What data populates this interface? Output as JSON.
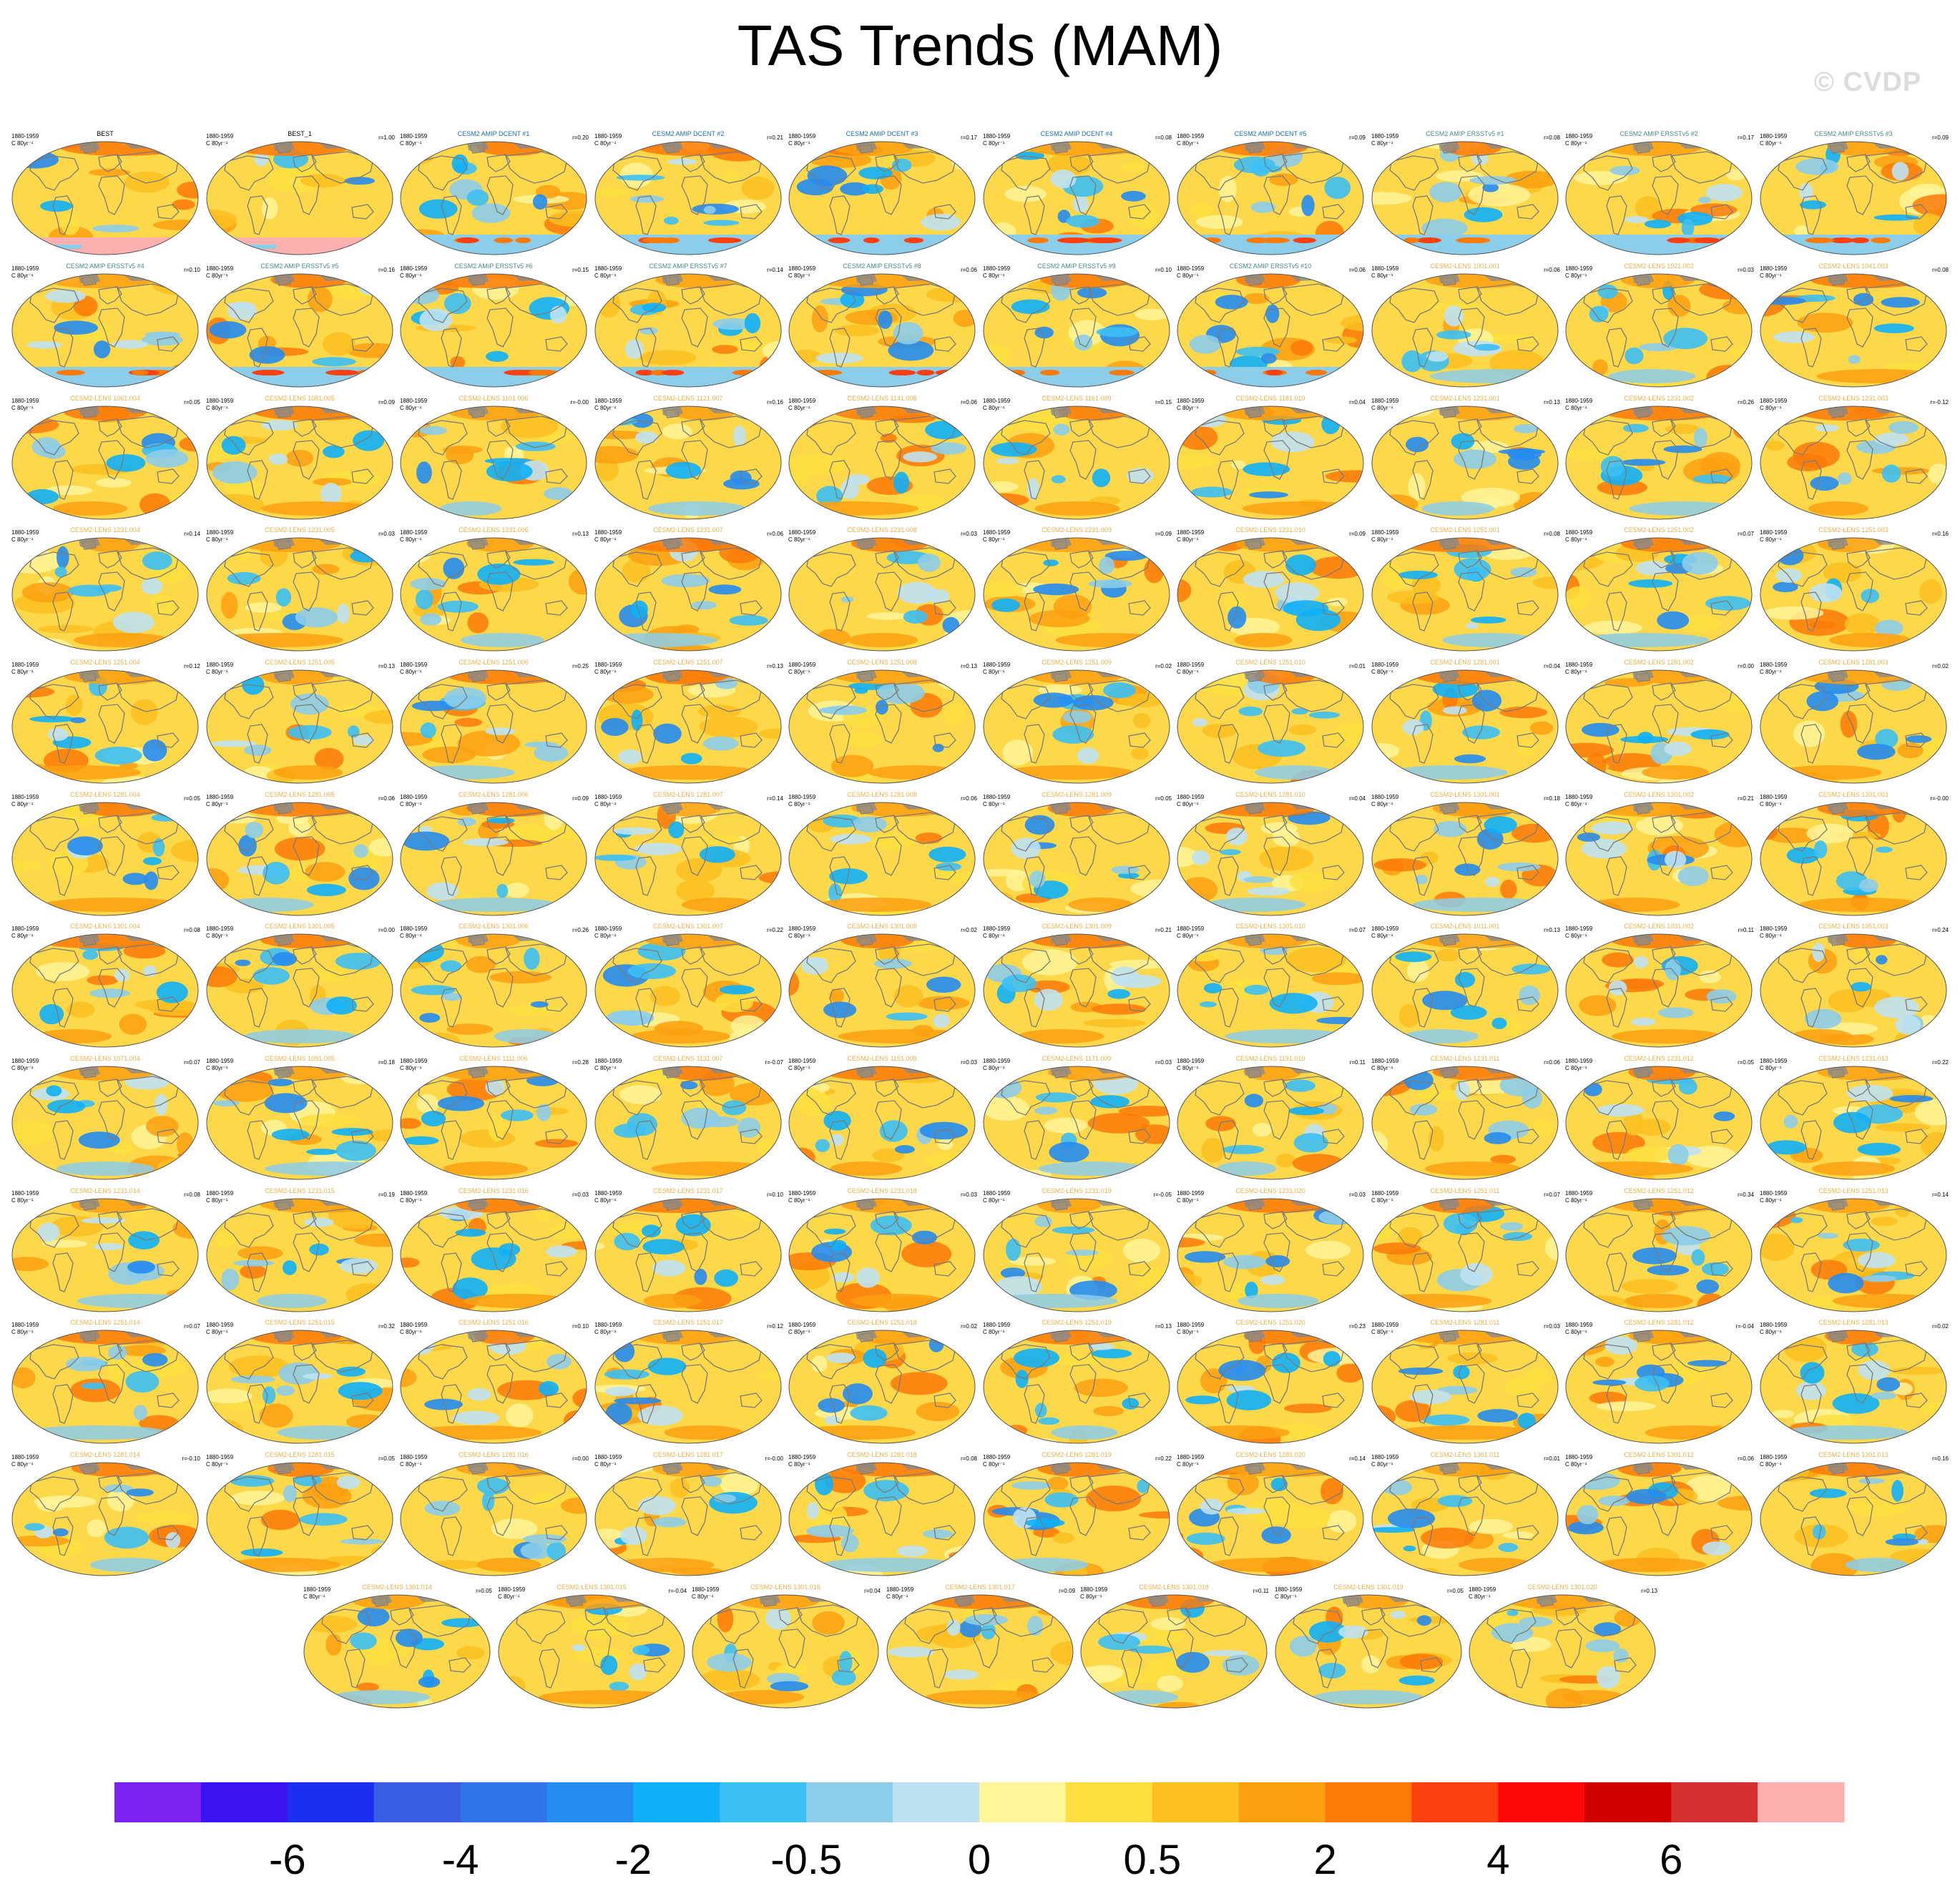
{
  "title": "TAS Trends (MAM)",
  "watermark": "© CVDP",
  "colors": {
    "ocean_bg": "#fcd84a",
    "land_outline": "#7a7a7a",
    "dcent_label": "#1a6ea8",
    "ersst_label": "#4a8a84",
    "lens_label": "#e8b04a"
  },
  "chart_data": {
    "type": "heatmap",
    "projection": "robinson-style global maps, one per member",
    "period": "1880-1959",
    "units": "C 80yr⁻¹",
    "colorbar": {
      "colors": [
        "#7b22ee",
        "#3a14f0",
        "#1c2ef0",
        "#3a5ee0",
        "#2f74e8",
        "#258cf0",
        "#0fb0f8",
        "#3cc0f4",
        "#8ccdea",
        "#bfe2f2",
        "#fff59a",
        "#fde040",
        "#fcbf20",
        "#fca010",
        "#fc7a08",
        "#fc4010",
        "#fc0808",
        "#d00000",
        "#d43030",
        "#fcb0b0"
      ],
      "tick_labels": [
        "-6",
        "-4",
        "-2",
        "-0.5",
        "0",
        "0.5",
        "2",
        "4",
        "6"
      ],
      "tick_boundaries": [
        2,
        4,
        6,
        8,
        10,
        12,
        14,
        16,
        18
      ]
    },
    "panels": [
      {
        "name": "BEST",
        "r": "",
        "kind": "obs"
      },
      {
        "name": "BEST_1",
        "r": "r=1.00",
        "kind": "obs"
      },
      {
        "name": "CESM2 AMIP DCENT #1",
        "r": "r=0.20",
        "kind": "dcent"
      },
      {
        "name": "CESM2 AMIP DCENT #2",
        "r": "r=0.21",
        "kind": "dcent"
      },
      {
        "name": "CESM2 AMIP DCENT #3",
        "r": "r=0.17",
        "kind": "dcent"
      },
      {
        "name": "CESM2 AMIP DCENT #4",
        "r": "r=0.08",
        "kind": "dcent"
      },
      {
        "name": "CESM2 AMIP DCENT #5",
        "r": "r=0.09",
        "kind": "dcent"
      },
      {
        "name": "CESM2 AMIP ERSSTv5 #1",
        "r": "r=0.08",
        "kind": "ersst"
      },
      {
        "name": "CESM2 AMIP ERSSTv5 #2",
        "r": "r=0.17",
        "kind": "ersst"
      },
      {
        "name": "CESM2 AMIP ERSSTv5 #3",
        "r": "r=0.09",
        "kind": "ersst"
      },
      {
        "name": "CESM2 AMIP ERSSTv5 #4",
        "r": "r=0.10",
        "kind": "ersst"
      },
      {
        "name": "CESM2 AMIP ERSSTv5 #5",
        "r": "r=0.16",
        "kind": "ersst"
      },
      {
        "name": "CESM2 AMIP ERSSTv5 #6",
        "r": "r=0.15",
        "kind": "ersst"
      },
      {
        "name": "CESM2 AMIP ERSSTv5 #7",
        "r": "r=0.14",
        "kind": "ersst"
      },
      {
        "name": "CESM2 AMIP ERSSTv5 #8",
        "r": "r=0.06",
        "kind": "ersst"
      },
      {
        "name": "CESM2 AMIP ERSSTv5 #9",
        "r": "r=0.10",
        "kind": "ersst"
      },
      {
        "name": "CESM2 AMIP ERSSTv5 #10",
        "r": "r=0.06",
        "kind": "ersst"
      },
      {
        "name": "CESM2-LENS 1001.001",
        "r": "r=0.06",
        "kind": "lens"
      },
      {
        "name": "CESM2-LENS 1021.002",
        "r": "r=0.03",
        "kind": "lens"
      },
      {
        "name": "CESM2-LENS 1041.003",
        "r": "r=0.08",
        "kind": "lens"
      },
      {
        "name": "CESM2-LENS 1061.004",
        "r": "r=0.05",
        "kind": "lens"
      },
      {
        "name": "CESM2-LENS 1081.005",
        "r": "r=0.09",
        "kind": "lens"
      },
      {
        "name": "CESM2-LENS 1101.006",
        "r": "r=-0.00",
        "kind": "lens"
      },
      {
        "name": "CESM2-LENS 1121.007",
        "r": "r=0.16",
        "kind": "lens"
      },
      {
        "name": "CESM2-LENS 1141.008",
        "r": "r=0.06",
        "kind": "lens"
      },
      {
        "name": "CESM2-LENS 1161.009",
        "r": "r=0.15",
        "kind": "lens"
      },
      {
        "name": "CESM2-LENS 1181.010",
        "r": "r=0.04",
        "kind": "lens"
      },
      {
        "name": "CESM2-LENS 1231.001",
        "r": "r=0.13",
        "kind": "lens"
      },
      {
        "name": "CESM2-LENS 1231.002",
        "r": "r=0.26",
        "kind": "lens"
      },
      {
        "name": "CESM2-LENS 1231.003",
        "r": "r=-0.12",
        "kind": "lens"
      },
      {
        "name": "CESM2-LENS 1231.004",
        "r": "r=0.14",
        "kind": "lens"
      },
      {
        "name": "CESM2-LENS 1231.005",
        "r": "r=0.03",
        "kind": "lens"
      },
      {
        "name": "CESM2-LENS 1231.006",
        "r": "r=0.13",
        "kind": "lens"
      },
      {
        "name": "CESM2-LENS 1231.007",
        "r": "r=0.06",
        "kind": "lens"
      },
      {
        "name": "CESM2-LENS 1231.008",
        "r": "r=0.03",
        "kind": "lens"
      },
      {
        "name": "CESM2-LENS 1231.009",
        "r": "r=0.09",
        "kind": "lens"
      },
      {
        "name": "CESM2-LENS 1231.010",
        "r": "r=0.09",
        "kind": "lens"
      },
      {
        "name": "CESM2-LENS 1251.001",
        "r": "r=0.08",
        "kind": "lens"
      },
      {
        "name": "CESM2-LENS 1251.002",
        "r": "r=0.07",
        "kind": "lens"
      },
      {
        "name": "CESM2-LENS 1251.003",
        "r": "r=0.16",
        "kind": "lens"
      },
      {
        "name": "CESM2-LENS 1251.004",
        "r": "r=0.12",
        "kind": "lens"
      },
      {
        "name": "CESM2-LENS 1251.005",
        "r": "r=0.13",
        "kind": "lens"
      },
      {
        "name": "CESM2-LENS 1251.006",
        "r": "r=0.25",
        "kind": "lens"
      },
      {
        "name": "CESM2-LENS 1251.007",
        "r": "r=0.13",
        "kind": "lens"
      },
      {
        "name": "CESM2-LENS 1251.008",
        "r": "r=0.13",
        "kind": "lens"
      },
      {
        "name": "CESM2-LENS 1251.009",
        "r": "r=0.02",
        "kind": "lens"
      },
      {
        "name": "CESM2-LENS 1251.010",
        "r": "r=0.01",
        "kind": "lens"
      },
      {
        "name": "CESM2-LENS 1281.001",
        "r": "r=0.04",
        "kind": "lens"
      },
      {
        "name": "CESM2-LENS 1281.002",
        "r": "r=0.00",
        "kind": "lens"
      },
      {
        "name": "CESM2-LENS 1281.003",
        "r": "r=0.02",
        "kind": "lens"
      },
      {
        "name": "CESM2-LENS 1281.004",
        "r": "r=0.05",
        "kind": "lens"
      },
      {
        "name": "CESM2-LENS 1281.005",
        "r": "r=0.06",
        "kind": "lens"
      },
      {
        "name": "CESM2-LENS 1281.006",
        "r": "r=0.09",
        "kind": "lens"
      },
      {
        "name": "CESM2-LENS 1281.007",
        "r": "r=0.14",
        "kind": "lens"
      },
      {
        "name": "CESM2-LENS 1281.008",
        "r": "r=0.06",
        "kind": "lens"
      },
      {
        "name": "CESM2-LENS 1281.009",
        "r": "r=0.05",
        "kind": "lens"
      },
      {
        "name": "CESM2-LENS 1281.010",
        "r": "r=0.04",
        "kind": "lens"
      },
      {
        "name": "CESM2-LENS 1301.001",
        "r": "r=0.18",
        "kind": "lens"
      },
      {
        "name": "CESM2-LENS 1301.002",
        "r": "r=0.21",
        "kind": "lens"
      },
      {
        "name": "CESM2-LENS 1301.003",
        "r": "r=-0.00",
        "kind": "lens"
      },
      {
        "name": "CESM2-LENS 1301.004",
        "r": "r=0.08",
        "kind": "lens"
      },
      {
        "name": "CESM2-LENS 1301.005",
        "r": "r=0.00",
        "kind": "lens"
      },
      {
        "name": "CESM2-LENS 1301.006",
        "r": "r=0.26",
        "kind": "lens"
      },
      {
        "name": "CESM2-LENS 1301.007",
        "r": "r=0.22",
        "kind": "lens"
      },
      {
        "name": "CESM2-LENS 1301.008",
        "r": "r=0.02",
        "kind": "lens"
      },
      {
        "name": "CESM2-LENS 1301.009",
        "r": "r=0.21",
        "kind": "lens"
      },
      {
        "name": "CESM2-LENS 1301.010",
        "r": "r=0.07",
        "kind": "lens"
      },
      {
        "name": "CESM2-LENS 1011.001",
        "r": "r=0.13",
        "kind": "lens"
      },
      {
        "name": "CESM2-LENS 1031.002",
        "r": "r=0.11",
        "kind": "lens"
      },
      {
        "name": "CESM2-LENS 1051.003",
        "r": "r=0.24",
        "kind": "lens"
      },
      {
        "name": "CESM2-LENS 1071.004",
        "r": "r=0.07",
        "kind": "lens"
      },
      {
        "name": "CESM2-LENS 1091.005",
        "r": "r=0.18",
        "kind": "lens"
      },
      {
        "name": "CESM2-LENS 1111.006",
        "r": "r=0.28",
        "kind": "lens"
      },
      {
        "name": "CESM2-LENS 1131.007",
        "r": "r=-0.07",
        "kind": "lens"
      },
      {
        "name": "CESM2-LENS 1151.008",
        "r": "r=0.03",
        "kind": "lens"
      },
      {
        "name": "CESM2-LENS 1171.009",
        "r": "r=0.03",
        "kind": "lens"
      },
      {
        "name": "CESM2-LENS 1191.010",
        "r": "r=0.11",
        "kind": "lens"
      },
      {
        "name": "CESM2-LENS 1231.011",
        "r": "r=0.06",
        "kind": "lens"
      },
      {
        "name": "CESM2-LENS 1231.012",
        "r": "r=0.05",
        "kind": "lens"
      },
      {
        "name": "CESM2-LENS 1231.013",
        "r": "r=0.22",
        "kind": "lens"
      },
      {
        "name": "CESM2-LENS 1231.014",
        "r": "r=0.08",
        "kind": "lens"
      },
      {
        "name": "CESM2-LENS 1231.015",
        "r": "r=0.19",
        "kind": "lens"
      },
      {
        "name": "CESM2-LENS 1231.016",
        "r": "r=0.03",
        "kind": "lens"
      },
      {
        "name": "CESM2-LENS 1231.017",
        "r": "r=0.10",
        "kind": "lens"
      },
      {
        "name": "CESM2-LENS 1231.018",
        "r": "r=0.03",
        "kind": "lens"
      },
      {
        "name": "CESM2-LENS 1231.019",
        "r": "r=-0.05",
        "kind": "lens"
      },
      {
        "name": "CESM2-LENS 1231.020",
        "r": "r=0.03",
        "kind": "lens"
      },
      {
        "name": "CESM2-LENS 1251.011",
        "r": "r=0.07",
        "kind": "lens"
      },
      {
        "name": "CESM2-LENS 1251.012",
        "r": "r=0.34",
        "kind": "lens"
      },
      {
        "name": "CESM2-LENS 1251.013",
        "r": "r=0.14",
        "kind": "lens"
      },
      {
        "name": "CESM2-LENS 1251.014",
        "r": "r=0.07",
        "kind": "lens"
      },
      {
        "name": "CESM2-LENS 1251.015",
        "r": "r=0.32",
        "kind": "lens"
      },
      {
        "name": "CESM2-LENS 1251.016",
        "r": "r=0.10",
        "kind": "lens"
      },
      {
        "name": "CESM2-LENS 1251.017",
        "r": "r=0.12",
        "kind": "lens"
      },
      {
        "name": "CESM2-LENS 1251.018",
        "r": "r=0.02",
        "kind": "lens"
      },
      {
        "name": "CESM2-LENS 1251.019",
        "r": "r=0.13",
        "kind": "lens"
      },
      {
        "name": "CESM2-LENS 1251.020",
        "r": "r=0.23",
        "kind": "lens"
      },
      {
        "name": "CESM2-LENS 1281.011",
        "r": "r=0.03",
        "kind": "lens"
      },
      {
        "name": "CESM2-LENS 1281.012",
        "r": "r=-0.04",
        "kind": "lens"
      },
      {
        "name": "CESM2-LENS 1281.013",
        "r": "r=0.02",
        "kind": "lens"
      },
      {
        "name": "CESM2-LENS 1281.014",
        "r": "r=-0.10",
        "kind": "lens"
      },
      {
        "name": "CESM2-LENS 1281.015",
        "r": "r=0.05",
        "kind": "lens"
      },
      {
        "name": "CESM2-LENS 1281.016",
        "r": "r=0.00",
        "kind": "lens"
      },
      {
        "name": "CESM2-LENS 1281.017",
        "r": "r=-0.00",
        "kind": "lens"
      },
      {
        "name": "CESM2-LENS 1281.018",
        "r": "r=0.08",
        "kind": "lens"
      },
      {
        "name": "CESM2-LENS 1281.019",
        "r": "r=0.22",
        "kind": "lens"
      },
      {
        "name": "CESM2-LENS 1281.020",
        "r": "r=0.14",
        "kind": "lens"
      },
      {
        "name": "CESM2-LENS 1301.011",
        "r": "r=0.01",
        "kind": "lens"
      },
      {
        "name": "CESM2-LENS 1301.012",
        "r": "r=0.06",
        "kind": "lens"
      },
      {
        "name": "CESM2-LENS 1301.013",
        "r": "r=0.16",
        "kind": "lens"
      },
      {
        "name": "CESM2-LENS 1301.014",
        "r": "r=0.05",
        "kind": "lens"
      },
      {
        "name": "CESM2-LENS 1301.015",
        "r": "r=-0.04",
        "kind": "lens"
      },
      {
        "name": "CESM2-LENS 1301.016",
        "r": "r=0.04",
        "kind": "lens"
      },
      {
        "name": "CESM2-LENS 1301.017",
        "r": "r=0.09",
        "kind": "lens"
      },
      {
        "name": "CESM2-LENS 1301.018",
        "r": "r=0.11",
        "kind": "lens"
      },
      {
        "name": "CESM2-LENS 1301.019",
        "r": "r=0.05",
        "kind": "lens"
      },
      {
        "name": "CESM2-LENS 1301.020",
        "r": "r=0.13",
        "kind": "lens"
      }
    ]
  }
}
